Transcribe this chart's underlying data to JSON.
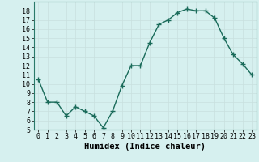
{
  "title": "",
  "xlabel": "Humidex (Indice chaleur)",
  "x": [
    0,
    1,
    2,
    3,
    4,
    5,
    6,
    7,
    8,
    9,
    10,
    11,
    12,
    13,
    14,
    15,
    16,
    17,
    18,
    19,
    20,
    21,
    22,
    23
  ],
  "y": [
    10.5,
    8.0,
    8.0,
    6.5,
    7.5,
    7.0,
    6.5,
    5.2,
    7.0,
    9.8,
    12.0,
    12.0,
    14.5,
    16.5,
    17.0,
    17.8,
    18.2,
    18.0,
    18.0,
    17.2,
    15.0,
    13.2,
    12.2,
    11.0
  ],
  "line_color": "#1a6b5a",
  "marker": "+",
  "marker_size": 4,
  "bg_color": "#d6f0ef",
  "grid_color": "#c8e0de",
  "ylim": [
    5,
    19
  ],
  "xlim": [
    -0.5,
    23.5
  ],
  "yticks": [
    5,
    6,
    7,
    8,
    9,
    10,
    11,
    12,
    13,
    14,
    15,
    16,
    17,
    18
  ],
  "xticks": [
    0,
    1,
    2,
    3,
    4,
    5,
    6,
    7,
    8,
    9,
    10,
    11,
    12,
    13,
    14,
    15,
    16,
    17,
    18,
    19,
    20,
    21,
    22,
    23
  ],
  "tick_fontsize": 6,
  "xlabel_fontsize": 7.5,
  "line_width": 1.0
}
